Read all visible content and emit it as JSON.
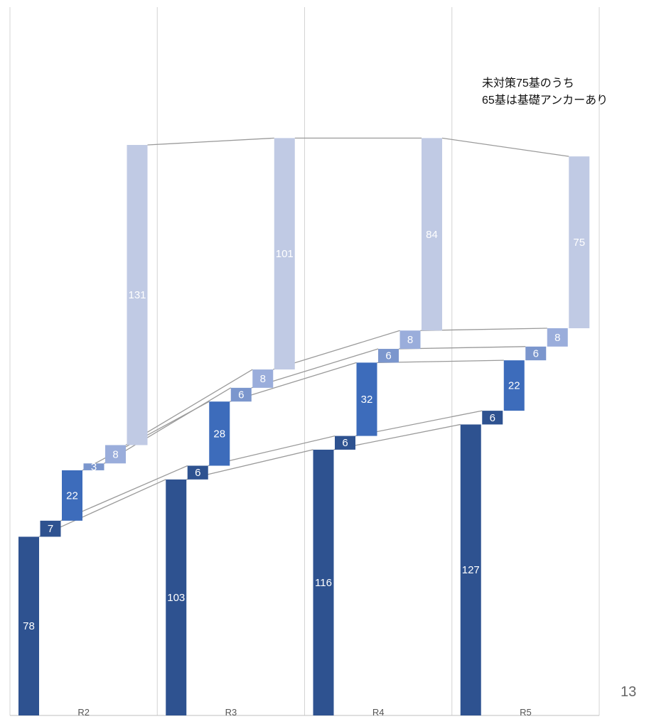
{
  "chart_data": {
    "type": "bar",
    "subtype": "stacked-waterfall",
    "categories": [
      "R2",
      "R3",
      "R4",
      "R5"
    ],
    "series": [
      {
        "values": [
          78,
          103,
          116,
          127
        ],
        "color": "#2e5290"
      },
      {
        "values": [
          7,
          6,
          6,
          6
        ],
        "color": "#2e5290"
      },
      {
        "values": [
          22,
          28,
          32,
          22
        ],
        "color": "#3d6cbb"
      },
      {
        "values": [
          3,
          6,
          6,
          6
        ],
        "color": "#7b96cd"
      },
      {
        "values": [
          8,
          8,
          8,
          8
        ],
        "color": "#9aaddb"
      },
      {
        "values": [
          131,
          101,
          84,
          75
        ],
        "color": "#c0cae4"
      }
    ],
    "ylim": [
      0,
      258
    ],
    "grid": "vertical",
    "legend": "none"
  },
  "annotation": {
    "line1": "未対策75基のうち",
    "line2": "65基は基礎アンカーあり"
  },
  "page_number": "13"
}
